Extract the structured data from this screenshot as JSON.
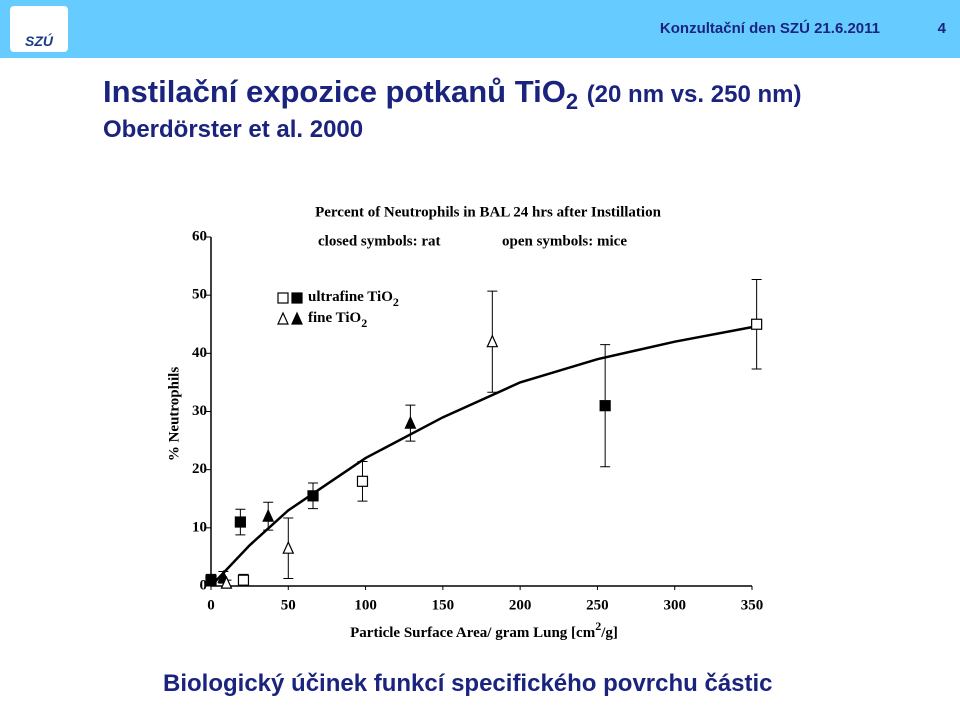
{
  "header": {
    "text": "Konzultační den SZÚ 21.6.2011",
    "page": "4",
    "logo": "SZÚ"
  },
  "slide_title": {
    "main": "Instilační expozice potkanů TiO",
    "sub": "2",
    "rest": "(20 nm vs. 250 nm)",
    "source": "Oberdörster et al. 2000"
  },
  "footer": "Biologický účinek funkcí specifického povrchu částic",
  "chart_data": {
    "type": "scatter",
    "title": "Percent of Neutrophils in BAL 24 hrs after Instillation",
    "notes": [
      "closed symbols:  rat",
      "open symbols:  mice"
    ],
    "y_label": "% Neutrophils",
    "x_label": {
      "start": "Particle Surface Area/ gram Lung [cm",
      "sup": "2",
      "end": "/g]"
    },
    "xlim": [
      0,
      350
    ],
    "xticks": [
      0,
      50,
      100,
      150,
      200,
      250,
      300,
      350
    ],
    "ylim": [
      0,
      60
    ],
    "yticks": [
      0,
      10,
      20,
      30,
      40,
      50,
      60
    ],
    "legend": [
      {
        "name": "ultrafine TiO",
        "sub": "2",
        "marker": "square"
      },
      {
        "name": "fine TiO",
        "sub": "2",
        "marker": "triangle"
      }
    ],
    "series": [
      {
        "marker": "square",
        "filled": true,
        "x": [
          0,
          19,
          66,
          255
        ],
        "values": [
          1,
          11,
          15.5,
          31
        ],
        "errors": [
          1,
          2.2,
          2.2,
          10.5
        ]
      },
      {
        "marker": "square",
        "filled": false,
        "x": [
          21,
          98,
          353
        ],
        "values": [
          1,
          18,
          45
        ],
        "errors": [
          1,
          3.4,
          7.7
        ]
      },
      {
        "marker": "triangle",
        "filled": true,
        "x": [
          8,
          37,
          129
        ],
        "values": [
          1.5,
          12,
          28
        ],
        "errors": [
          1,
          2.4,
          3.1
        ]
      },
      {
        "marker": "triangle",
        "filled": false,
        "x": [
          10,
          50,
          182
        ],
        "values": [
          0.5,
          6.5,
          42
        ],
        "errors": [
          0.5,
          5.2,
          8.7
        ]
      }
    ],
    "fit": {
      "x": [
        0,
        25,
        50,
        75,
        100,
        150,
        200,
        250,
        300,
        350
      ],
      "values": [
        0,
        7,
        13,
        17.5,
        22,
        29,
        35,
        39,
        42,
        44.5
      ]
    }
  }
}
